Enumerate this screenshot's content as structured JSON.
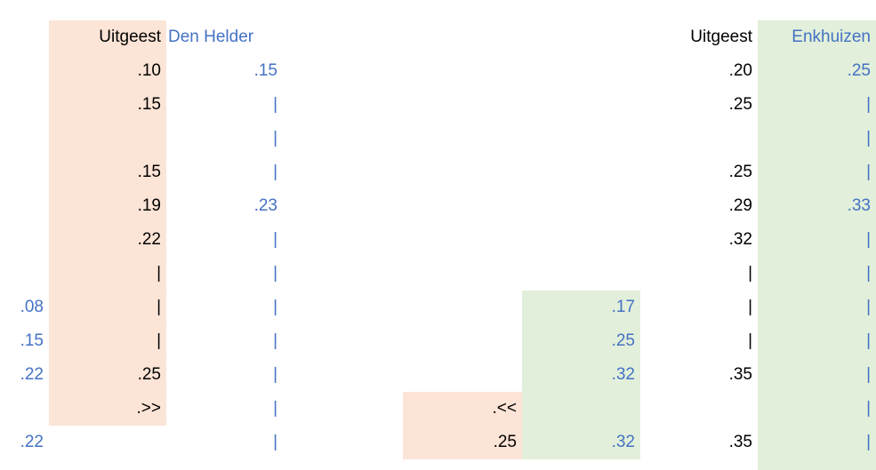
{
  "table": {
    "header": [
      null,
      "Uitgeest",
      "Den Helder",
      null,
      null,
      null,
      "Uitgeest",
      "Enkhuizen"
    ],
    "rows": [
      [
        null,
        ".10",
        ".15",
        null,
        null,
        null,
        ".20",
        ".25"
      ],
      [
        null,
        ".15",
        "|",
        null,
        null,
        null,
        ".25",
        "|"
      ],
      [
        null,
        null,
        "|",
        null,
        null,
        null,
        null,
        "|"
      ],
      [
        null,
        ".15",
        "|",
        null,
        null,
        null,
        ".25",
        "|"
      ],
      [
        null,
        ".19",
        ".23",
        null,
        null,
        null,
        ".29",
        ".33"
      ],
      [
        null,
        ".22",
        "|",
        null,
        null,
        null,
        ".32",
        "|"
      ],
      [
        null,
        "|",
        "|",
        null,
        null,
        null,
        "|",
        "|"
      ],
      [
        ".08",
        "|",
        "|",
        null,
        null,
        ".17",
        "|",
        "|"
      ],
      [
        ".15",
        "|",
        "|",
        null,
        null,
        ".25",
        "|",
        "|"
      ],
      [
        ".22",
        ".25",
        "|",
        null,
        null,
        ".32",
        ".35",
        "|"
      ],
      [
        null,
        ".>>",
        "|",
        null,
        ".<<",
        null,
        null,
        "|"
      ],
      [
        ".22",
        null,
        "|",
        null,
        ".25",
        ".32",
        ".35",
        "|"
      ]
    ]
  }
}
